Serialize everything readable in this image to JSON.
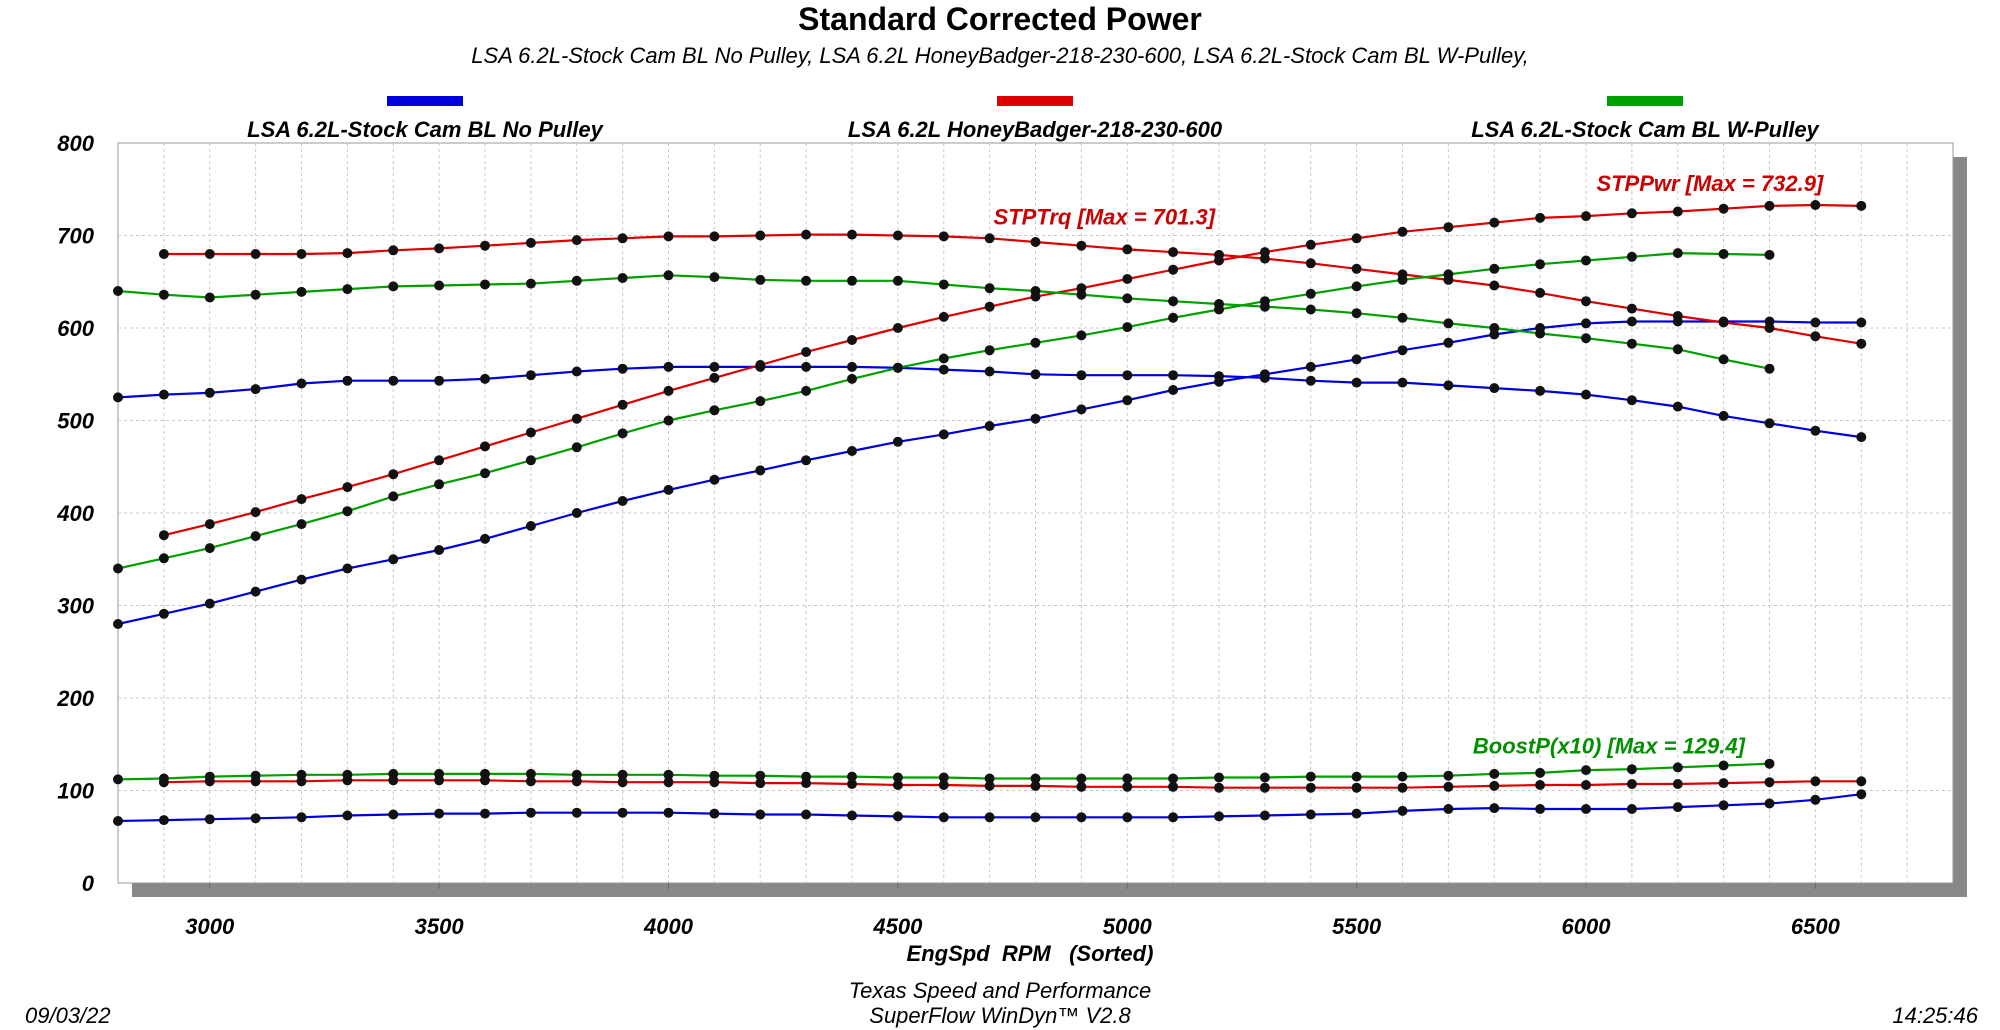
{
  "chart_data": {
    "type": "line",
    "title": "Standard Corrected Power",
    "subtitle": "LSA 6.2L-Stock Cam BL No Pulley, LSA 6.2L HoneyBadger-218-230-600, LSA 6.2L-Stock Cam BL W-Pulley,",
    "xlabel": "EngSpd  RPM   (Sorted)",
    "ylabel": "",
    "xlim": [
      2800,
      6800
    ],
    "ylim": [
      0,
      800
    ],
    "x_ticks": [
      "3000",
      "3500",
      "4000",
      "4500",
      "5000",
      "5500",
      "6000",
      "6500"
    ],
    "y_ticks": [
      "0",
      "100",
      "200",
      "300",
      "400",
      "500",
      "600",
      "700",
      "800"
    ],
    "grid": true,
    "legend_position": "top",
    "legend": [
      {
        "name": "LSA 6.2L-Stock Cam BL No Pulley",
        "color": "#0000dd"
      },
      {
        "name": "LSA 6.2L HoneyBadger-218-230-600",
        "color": "#dd0000"
      },
      {
        "name": "LSA 6.2L-Stock Cam BL W-Pulley",
        "color": "#00a000"
      }
    ],
    "annotations": [
      {
        "text": "STPTrq [Max = 701.3]",
        "x": 4950,
        "y": 712,
        "color": "#cc0000"
      },
      {
        "text": "STPPwr [Max = 732.9]",
        "x": 6270,
        "y": 748,
        "color": "#cc0000"
      },
      {
        "text": "BoostP(x10) [Max = 129.4]",
        "x": 6050,
        "y": 140,
        "color": "#009000"
      }
    ],
    "series": [
      {
        "key": "blue_pwr",
        "color": "#0000dd",
        "x": [
          2800,
          2900,
          3000,
          3100,
          3200,
          3300,
          3400,
          3500,
          3600,
          3700,
          3800,
          3900,
          4000,
          4100,
          4200,
          4300,
          4400,
          4500,
          4600,
          4700,
          4800,
          4900,
          5000,
          5100,
          5200,
          5300,
          5400,
          5500,
          5600,
          5700,
          5800,
          5900,
          6000,
          6100,
          6200,
          6300,
          6400,
          6500,
          6600
        ],
        "y": [
          280,
          291,
          302,
          315,
          328,
          340,
          350,
          360,
          372,
          386,
          400,
          413,
          425,
          436,
          446,
          457,
          467,
          477,
          485,
          494,
          502,
          512,
          522,
          533,
          542,
          550,
          558,
          566,
          576,
          584,
          593,
          600,
          605,
          607,
          607,
          607,
          607,
          606,
          606
        ]
      },
      {
        "key": "blue_trq",
        "color": "#0000dd",
        "x": [
          2800,
          2900,
          3000,
          3100,
          3200,
          3300,
          3400,
          3500,
          3600,
          3700,
          3800,
          3900,
          4000,
          4100,
          4200,
          4300,
          4400,
          4500,
          4600,
          4700,
          4800,
          4900,
          5000,
          5100,
          5200,
          5300,
          5400,
          5500,
          5600,
          5700,
          5800,
          5900,
          6000,
          6100,
          6200,
          6300,
          6400,
          6500,
          6600
        ],
        "y": [
          525,
          528,
          530,
          534,
          540,
          543,
          543,
          543,
          545,
          549,
          553,
          556,
          558,
          558,
          558,
          558,
          558,
          557,
          555,
          553,
          550,
          549,
          549,
          549,
          548,
          546,
          543,
          541,
          541,
          538,
          535,
          532,
          528,
          522,
          515,
          505,
          497,
          489,
          482
        ]
      },
      {
        "key": "blue_boost",
        "color": "#0000dd",
        "x": [
          2800,
          2900,
          3000,
          3100,
          3200,
          3300,
          3400,
          3500,
          3600,
          3700,
          3800,
          3900,
          4000,
          4100,
          4200,
          4300,
          4400,
          4500,
          4600,
          4700,
          4800,
          4900,
          5000,
          5100,
          5200,
          5300,
          5400,
          5500,
          5600,
          5700,
          5800,
          5900,
          6000,
          6100,
          6200,
          6300,
          6400,
          6500,
          6600
        ],
        "y": [
          67,
          68,
          69,
          70,
          71,
          73,
          74,
          75,
          75,
          76,
          76,
          76,
          76,
          75,
          74,
          74,
          73,
          72,
          71,
          71,
          71,
          71,
          71,
          71,
          72,
          73,
          74,
          75,
          78,
          80,
          81,
          80,
          80,
          80,
          82,
          84,
          86,
          90,
          96
        ]
      },
      {
        "key": "red_pwr",
        "color": "#dd0000",
        "x": [
          2900,
          3000,
          3100,
          3200,
          3300,
          3400,
          3500,
          3600,
          3700,
          3800,
          3900,
          4000,
          4100,
          4200,
          4300,
          4400,
          4500,
          4600,
          4700,
          4800,
          4900,
          5000,
          5100,
          5200,
          5300,
          5400,
          5500,
          5600,
          5700,
          5800,
          5900,
          6000,
          6100,
          6200,
          6300,
          6400,
          6500,
          6600
        ],
        "y": [
          376,
          388,
          401,
          415,
          428,
          442,
          457,
          472,
          487,
          502,
          517,
          532,
          546,
          560,
          574,
          587,
          600,
          612,
          623,
          634,
          643,
          653,
          663,
          673,
          682,
          690,
          697,
          704,
          709,
          714,
          719,
          721,
          724,
          726,
          729,
          732,
          733,
          732
        ]
      },
      {
        "key": "red_trq",
        "color": "#dd0000",
        "x": [
          2900,
          3000,
          3100,
          3200,
          3300,
          3400,
          3500,
          3600,
          3700,
          3800,
          3900,
          4000,
          4100,
          4200,
          4300,
          4400,
          4500,
          4600,
          4700,
          4800,
          4900,
          5000,
          5100,
          5200,
          5300,
          5400,
          5500,
          5600,
          5700,
          5800,
          5900,
          6000,
          6100,
          6200,
          6300,
          6400,
          6500,
          6600
        ],
        "y": [
          680,
          680,
          680,
          680,
          681,
          684,
          686,
          689,
          692,
          695,
          697,
          699,
          699,
          700,
          701,
          701,
          700,
          699,
          697,
          693,
          689,
          685,
          682,
          679,
          675,
          670,
          664,
          658,
          652,
          646,
          638,
          629,
          621,
          613,
          606,
          600,
          591,
          583
        ]
      },
      {
        "key": "red_boost",
        "color": "#dd0000",
        "x": [
          2900,
          3000,
          3100,
          3200,
          3300,
          3400,
          3500,
          3600,
          3700,
          3800,
          3900,
          4000,
          4100,
          4200,
          4300,
          4400,
          4500,
          4600,
          4700,
          4800,
          4900,
          5000,
          5100,
          5200,
          5300,
          5400,
          5500,
          5600,
          5700,
          5800,
          5900,
          6000,
          6100,
          6200,
          6300,
          6400,
          6500,
          6600
        ],
        "y": [
          109,
          110,
          110,
          110,
          111,
          111,
          111,
          111,
          110,
          110,
          109,
          109,
          109,
          108,
          108,
          107,
          106,
          106,
          105,
          105,
          104,
          104,
          104,
          103,
          103,
          103,
          103,
          103,
          104,
          105,
          106,
          106,
          107,
          107,
          108,
          109,
          110,
          110
        ]
      },
      {
        "key": "green_pwr",
        "color": "#00a000",
        "x": [
          2800,
          2900,
          3000,
          3100,
          3200,
          3300,
          3400,
          3500,
          3600,
          3700,
          3800,
          3900,
          4000,
          4100,
          4200,
          4300,
          4400,
          4500,
          4600,
          4700,
          4800,
          4900,
          5000,
          5100,
          5200,
          5300,
          5400,
          5500,
          5600,
          5700,
          5800,
          5900,
          6000,
          6100,
          6200,
          6300,
          6400
        ],
        "y": [
          340,
          351,
          362,
          375,
          388,
          402,
          418,
          431,
          443,
          457,
          471,
          486,
          500,
          511,
          521,
          532,
          545,
          557,
          567,
          576,
          584,
          592,
          601,
          611,
          620,
          629,
          637,
          645,
          652,
          658,
          664,
          669,
          673,
          677,
          681,
          680,
          679
        ]
      },
      {
        "key": "green_trq",
        "color": "#00a000",
        "x": [
          2800,
          2900,
          3000,
          3100,
          3200,
          3300,
          3400,
          3500,
          3600,
          3700,
          3800,
          3900,
          4000,
          4100,
          4200,
          4300,
          4400,
          4500,
          4600,
          4700,
          4800,
          4900,
          5000,
          5100,
          5200,
          5300,
          5400,
          5500,
          5600,
          5700,
          5800,
          5900,
          6000,
          6100,
          6200,
          6300,
          6400
        ],
        "y": [
          640,
          636,
          633,
          636,
          639,
          642,
          645,
          646,
          647,
          648,
          651,
          654,
          657,
          655,
          652,
          651,
          651,
          651,
          647,
          643,
          640,
          636,
          632,
          629,
          626,
          623,
          620,
          616,
          611,
          605,
          600,
          594,
          589,
          583,
          577,
          566,
          556
        ]
      },
      {
        "key": "green_boost",
        "color": "#00a000",
        "x": [
          2800,
          2900,
          3000,
          3100,
          3200,
          3300,
          3400,
          3500,
          3600,
          3700,
          3800,
          3900,
          4000,
          4100,
          4200,
          4300,
          4400,
          4500,
          4600,
          4700,
          4800,
          4900,
          5000,
          5100,
          5200,
          5300,
          5400,
          5500,
          5600,
          5700,
          5800,
          5900,
          6000,
          6100,
          6200,
          6300,
          6400
        ],
        "y": [
          112,
          113,
          115,
          116,
          117,
          117,
          118,
          118,
          118,
          118,
          117,
          117,
          117,
          116,
          116,
          115,
          115,
          114,
          114,
          113,
          113,
          113,
          113,
          113,
          114,
          114,
          115,
          115,
          115,
          116,
          118,
          119,
          122,
          123,
          125,
          127,
          129
        ]
      }
    ]
  },
  "footer": {
    "date": "09/03/22",
    "company": "Texas Speed and Performance",
    "software": "SuperFlow WinDyn™  V2.8",
    "time": "14:25:46"
  }
}
